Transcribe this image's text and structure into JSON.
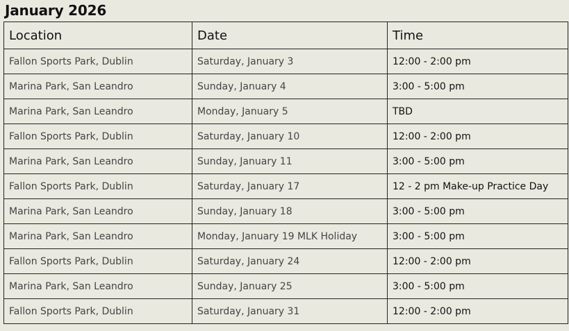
{
  "title": "January 2026",
  "headers": [
    "Location",
    "Date",
    "Time"
  ],
  "rows": [
    [
      "Fallon Sports Park, Dublin",
      "Saturday, January 3",
      "12:00  - 2:00 pm"
    ],
    [
      "Marina Park, San Leandro",
      "Sunday, January 4",
      "3:00 - 5:00 pm"
    ],
    [
      "Marina Park, San Leandro",
      "Monday, January 5",
      "TBD"
    ],
    [
      "Fallon Sports Park, Dublin",
      "Saturday, January 10",
      "12:00  - 2:00 pm"
    ],
    [
      "Marina Park, San Leandro",
      "Sunday, January 11",
      "3:00 - 5:00 pm"
    ],
    [
      "Fallon Sports Park, Dublin",
      "Saturday, January 17",
      "12 - 2 pm Make-up Practice Day"
    ],
    [
      "Marina Park, San Leandro",
      "Sunday, January 18",
      "3:00 - 5:00 pm"
    ],
    [
      "Marina Park, San Leandro",
      "Monday, January 19 MLK Holiday",
      "3:00 - 5:00 pm"
    ],
    [
      "Fallon Sports Park, Dublin",
      "Saturday, January 24",
      "12:00  - 2:00 pm"
    ],
    [
      "Marina Park, San Leandro",
      "Sunday, January 25",
      "3:00 - 5:00 pm"
    ],
    [
      "Fallon Sports Park, Dublin",
      "Saturday, January 31",
      "12:00  - 2:00 pm"
    ]
  ]
}
